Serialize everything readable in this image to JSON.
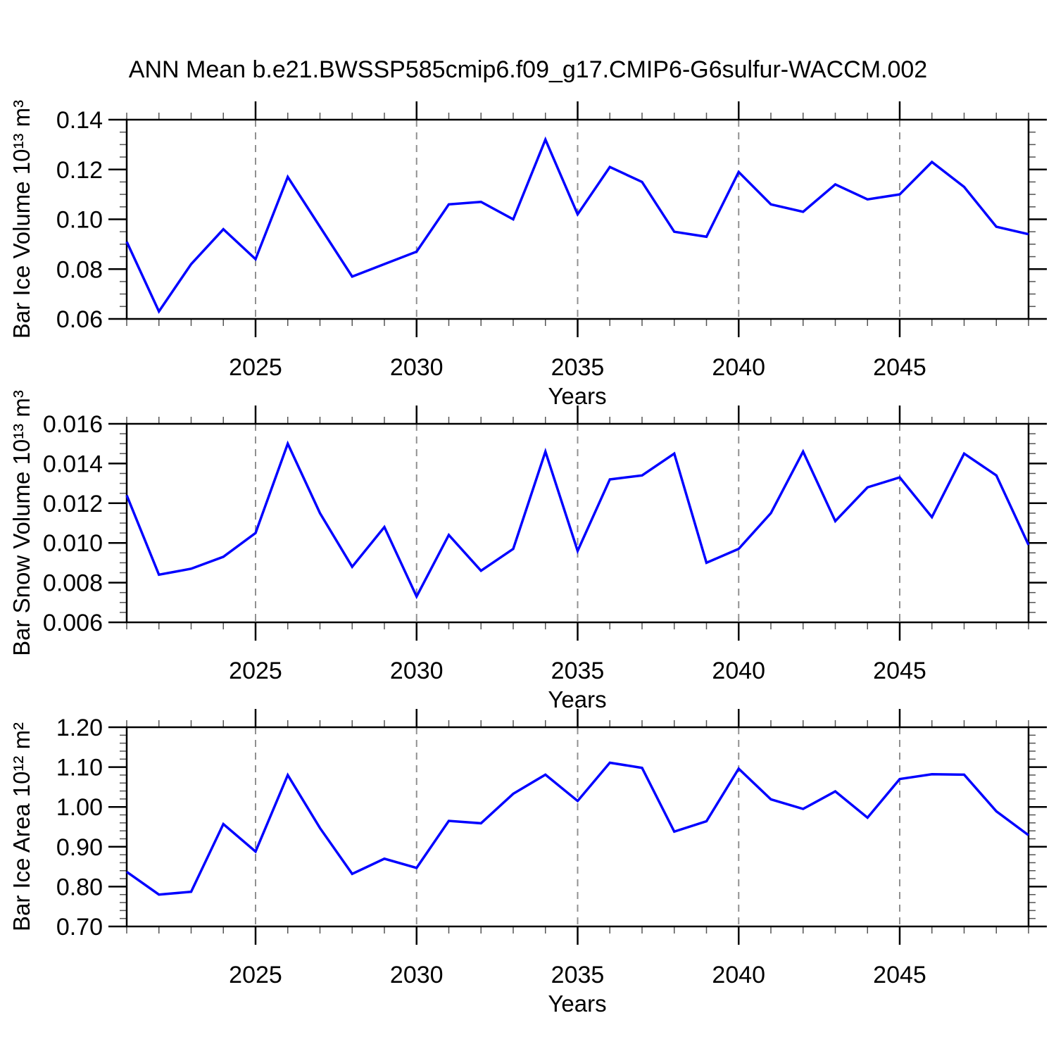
{
  "title": "ANN Mean b.e21.BWSSP585cmip6.f09_g17.CMIP6-G6sulfur-WACCM.002",
  "colors": {
    "background": "#ffffff",
    "line": "#0000ff",
    "grid": "#909090",
    "frame": "#000000",
    "tick": "#000000",
    "tick_minor": "#555555",
    "text": "#000000"
  },
  "x_axis": {
    "label": "Years",
    "start_year": 2021,
    "end_year": 2049,
    "major_ticks": [
      2025,
      2030,
      2035,
      2040,
      2045
    ],
    "minor_step_years": 1
  },
  "chart_data": [
    {
      "id": "ice-volume",
      "type": "line",
      "title": "ANN Mean b.e21.BWSSP585cmip6.f09_g17.CMIP6-G6sulfur-WACCM.002",
      "x_label": "Years",
      "y_label": "Bar Ice Volume 10¹³ m³",
      "ylim": [
        0.06,
        0.14
      ],
      "y_major_step": 0.02,
      "y_minor_step": 0.005,
      "y_decimals": 2,
      "grid": "vertical-dashed-at-x-majors",
      "legend": "none",
      "line_color": "#0000ff",
      "x": [
        2021,
        2022,
        2023,
        2024,
        2025,
        2026,
        2027,
        2028,
        2029,
        2030,
        2031,
        2032,
        2033,
        2034,
        2035,
        2036,
        2037,
        2038,
        2039,
        2040,
        2041,
        2042,
        2043,
        2044,
        2045,
        2046,
        2047,
        2048,
        2049
      ],
      "y": [
        0.091,
        0.063,
        0.082,
        0.096,
        0.084,
        0.117,
        0.097,
        0.077,
        0.082,
        0.087,
        0.106,
        0.107,
        0.1,
        0.132,
        0.102,
        0.121,
        0.115,
        0.095,
        0.093,
        0.119,
        0.106,
        0.103,
        0.114,
        0.108,
        0.11,
        0.123,
        0.113,
        0.097,
        0.094
      ]
    },
    {
      "id": "snow-volume",
      "type": "line",
      "title": "",
      "x_label": "Years",
      "y_label": "Bar Snow Volume 10¹³ m³",
      "ylim": [
        0.006,
        0.016
      ],
      "y_major_step": 0.002,
      "y_minor_step": 0.0005,
      "y_decimals": 3,
      "grid": "vertical-dashed-at-x-majors",
      "legend": "none",
      "line_color": "#0000ff",
      "x": [
        2021,
        2022,
        2023,
        2024,
        2025,
        2026,
        2027,
        2028,
        2029,
        2030,
        2031,
        2032,
        2033,
        2034,
        2035,
        2036,
        2037,
        2038,
        2039,
        2040,
        2041,
        2042,
        2043,
        2044,
        2045,
        2046,
        2047,
        2048,
        2049
      ],
      "y": [
        0.0124,
        0.0084,
        0.0087,
        0.0093,
        0.0105,
        0.015,
        0.0115,
        0.0088,
        0.0108,
        0.0073,
        0.0104,
        0.0086,
        0.0097,
        0.0146,
        0.0096,
        0.0132,
        0.0134,
        0.0145,
        0.009,
        0.0097,
        0.0115,
        0.0146,
        0.0111,
        0.0128,
        0.0133,
        0.0113,
        0.0145,
        0.0134,
        0.0099
      ]
    },
    {
      "id": "ice-area",
      "type": "line",
      "title": "",
      "x_label": "Years",
      "y_label": "Bar Ice Area 10¹² m²",
      "ylim": [
        0.7,
        1.2
      ],
      "y_major_step": 0.1,
      "y_minor_step": 0.02,
      "y_decimals": 2,
      "grid": "vertical-dashed-at-x-majors",
      "legend": "none",
      "line_color": "#0000ff",
      "x": [
        2021,
        2022,
        2023,
        2024,
        2025,
        2026,
        2027,
        2028,
        2029,
        2030,
        2031,
        2032,
        2033,
        2034,
        2035,
        2036,
        2037,
        2038,
        2039,
        2040,
        2041,
        2042,
        2043,
        2044,
        2045,
        2046,
        2047,
        2048,
        2049
      ],
      "y": [
        0.837,
        0.78,
        0.787,
        0.957,
        0.888,
        1.08,
        0.947,
        0.832,
        0.87,
        0.847,
        0.965,
        0.959,
        1.033,
        1.081,
        1.015,
        1.111,
        1.098,
        0.938,
        0.964,
        1.096,
        1.019,
        0.995,
        1.039,
        0.973,
        1.07,
        1.082,
        1.081,
        0.989,
        0.929
      ]
    }
  ]
}
